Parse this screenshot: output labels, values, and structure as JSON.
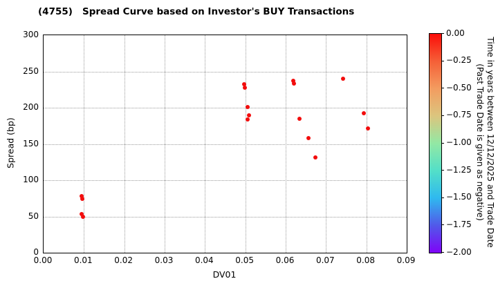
{
  "figure": {
    "title": "(4755)   Spread Curve based on Investor's BUY Transactions"
  },
  "chart_data": {
    "type": "scatter",
    "title": "(4755)   Spread Curve based on Investor's BUY Transactions",
    "xlabel": "DV01",
    "ylabel": "Spread (bp)",
    "xlim": [
      0.0,
      0.09
    ],
    "ylim": [
      0,
      300
    ],
    "xticks": [
      "0.00",
      "0.01",
      "0.02",
      "0.03",
      "0.04",
      "0.05",
      "0.06",
      "0.07",
      "0.08",
      "0.09"
    ],
    "xtick_values": [
      0.0,
      0.01,
      0.02,
      0.03,
      0.04,
      0.05,
      0.06,
      0.07,
      0.08,
      0.09
    ],
    "yticks": [
      "0",
      "50",
      "100",
      "150",
      "200",
      "250",
      "300"
    ],
    "ytick_values": [
      0,
      50,
      100,
      150,
      200,
      250,
      300
    ],
    "grid": "dotted gray, both axes",
    "legend_position": "none",
    "marker_color": "#f20d0d",
    "marker_meaning": "all points colored red, i.e. time value near 0.00 on colorbar",
    "points": [
      {
        "x": 0.0095,
        "y": 78
      },
      {
        "x": 0.0096,
        "y": 74
      },
      {
        "x": 0.0095,
        "y": 53
      },
      {
        "x": 0.0097,
        "y": 50
      },
      {
        "x": 0.0497,
        "y": 232
      },
      {
        "x": 0.0499,
        "y": 228
      },
      {
        "x": 0.0505,
        "y": 201
      },
      {
        "x": 0.0509,
        "y": 190
      },
      {
        "x": 0.0506,
        "y": 184
      },
      {
        "x": 0.0619,
        "y": 237
      },
      {
        "x": 0.0621,
        "y": 233
      },
      {
        "x": 0.0635,
        "y": 185
      },
      {
        "x": 0.0657,
        "y": 158
      },
      {
        "x": 0.0673,
        "y": 131
      },
      {
        "x": 0.0743,
        "y": 240
      },
      {
        "x": 0.0794,
        "y": 192
      },
      {
        "x": 0.0804,
        "y": 171
      }
    ],
    "colorbar": {
      "label_line1": "Time in years between 12/12/2025 and Trade Date",
      "label_line2": "(Past Trade Date is given as negative)",
      "range_top": 0.0,
      "range_bottom": -2.0,
      "ticks": [
        "0.00",
        "−0.25",
        "−0.50",
        "−0.75",
        "−1.00",
        "−1.25",
        "−1.50",
        "−1.75",
        "−2.00"
      ],
      "tick_values": [
        0.0,
        -0.25,
        -0.5,
        -0.75,
        -1.0,
        -1.25,
        -1.5,
        -1.75,
        -2.0
      ],
      "gradient_top_to_bottom": [
        "#fb0d09",
        "#f55f37",
        "#f39c60",
        "#dcc57e",
        "#93e8a4",
        "#53dfc8",
        "#2fb9ef",
        "#5159e9",
        "#7f04f7"
      ]
    }
  }
}
